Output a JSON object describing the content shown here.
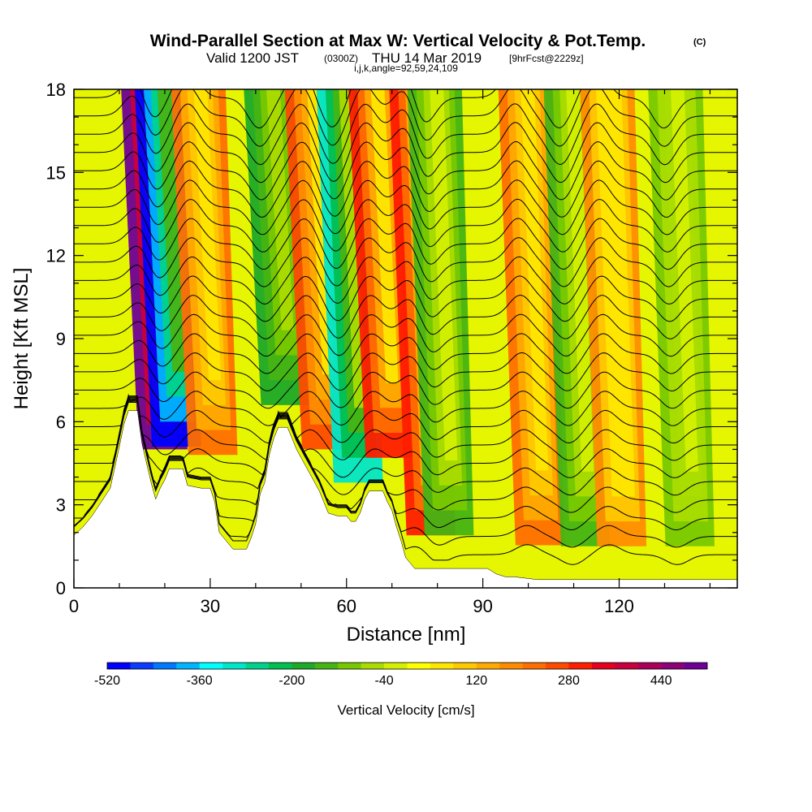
{
  "header": {
    "title": "Wind-Parallel Section at Max W: Vertical Velocity & Pot.Temp.",
    "copyright": "(C)",
    "subtitle_a": "Valid 1200 JST",
    "subtitle_b": "(0300Z)",
    "subtitle_c": "THU 14 Mar 2019",
    "subtitle_d": "[9hrFcst@2229z]",
    "meta": "i,j,k,angle=92,59,24,109"
  },
  "chart_data": {
    "type": "heatmap",
    "xlabel": "Distance [nm]",
    "ylabel": "Height [Kft MSL]",
    "xlim": [
      0,
      146
    ],
    "ylim": [
      0,
      18
    ],
    "x_ticks": [
      0,
      30,
      60,
      90,
      120
    ],
    "y_ticks": [
      0,
      3,
      6,
      9,
      12,
      15,
      18
    ],
    "grid": false,
    "colorbar": {
      "label": "Vertical Velocity [cm/s]",
      "range": [
        -520,
        520
      ],
      "step": 40,
      "tick_values": [
        -520,
        -360,
        -200,
        -40,
        120,
        280,
        440
      ],
      "colors": [
        "#0000ff",
        "#0a3cff",
        "#0078ff",
        "#00b4ff",
        "#00ffff",
        "#00e6c8",
        "#00d28c",
        "#00be50",
        "#1eaa28",
        "#46b414",
        "#78c800",
        "#aadc00",
        "#d2f000",
        "#ffff00",
        "#ffe600",
        "#ffc800",
        "#ffaa00",
        "#ff8c00",
        "#ff6e00",
        "#ff4b00",
        "#ff1e00",
        "#e6001e",
        "#c8003c",
        "#aa005a",
        "#8c0078",
        "#6e0096"
      ]
    },
    "terrain_kft": [
      [
        0,
        1.9
      ],
      [
        2,
        2.2
      ],
      [
        4,
        2.6
      ],
      [
        6,
        3.1
      ],
      [
        8,
        3.6
      ],
      [
        10,
        5.1
      ],
      [
        11,
        5.9
      ],
      [
        12,
        6.4
      ],
      [
        14,
        6.4
      ],
      [
        15,
        5.2
      ],
      [
        16,
        4.5
      ],
      [
        17,
        3.8
      ],
      [
        18,
        3.2
      ],
      [
        19,
        3.6
      ],
      [
        20,
        3.9
      ],
      [
        21,
        4.3
      ],
      [
        22,
        4.3
      ],
      [
        24,
        4.3
      ],
      [
        25,
        3.7
      ],
      [
        28,
        3.6
      ],
      [
        30,
        3.6
      ],
      [
        31,
        3.1
      ],
      [
        32,
        2.0
      ],
      [
        33,
        1.8
      ],
      [
        35,
        1.4
      ],
      [
        38,
        1.4
      ],
      [
        39,
        1.8
      ],
      [
        40,
        2.3
      ],
      [
        41,
        3.4
      ],
      [
        42,
        3.8
      ],
      [
        43,
        4.8
      ],
      [
        44,
        5.4
      ],
      [
        45,
        5.8
      ],
      [
        47,
        5.8
      ],
      [
        48,
        5.4
      ],
      [
        49,
        5.0
      ],
      [
        50,
        4.7
      ],
      [
        52,
        4.1
      ],
      [
        54,
        3.5
      ],
      [
        55,
        3.1
      ],
      [
        56,
        2.7
      ],
      [
        58,
        2.6
      ],
      [
        60,
        2.6
      ],
      [
        61,
        2.4
      ],
      [
        62,
        2.4
      ],
      [
        63,
        2.7
      ],
      [
        64,
        3.2
      ],
      [
        65,
        3.5
      ],
      [
        68,
        3.5
      ],
      [
        69,
        3.1
      ],
      [
        70,
        2.8
      ],
      [
        71,
        2.2
      ],
      [
        72,
        1.7
      ],
      [
        73,
        1.1
      ],
      [
        74,
        0.9
      ],
      [
        75,
        0.7
      ],
      [
        85,
        0.7
      ],
      [
        91,
        0.7
      ],
      [
        92,
        0.6
      ],
      [
        93,
        0.5
      ],
      [
        95,
        0.4
      ],
      [
        97,
        0.4
      ],
      [
        102,
        0.3
      ],
      [
        146,
        0.3
      ]
    ],
    "velocity_features": [
      {
        "x": 17,
        "sign": "updraft",
        "max_cm_s": 500
      },
      {
        "x": 20,
        "sign": "downdraft",
        "min_cm_s": -520
      },
      {
        "x": 28,
        "sign": "updraft",
        "max_cm_s": 200
      },
      {
        "x": 44,
        "sign": "downdraft",
        "min_cm_s": -200
      },
      {
        "x": 53,
        "sign": "updraft",
        "max_cm_s": 250
      },
      {
        "x": 60,
        "sign": "downdraft",
        "min_cm_s": -300
      },
      {
        "x": 67,
        "sign": "updraft",
        "max_cm_s": 280
      },
      {
        "x": 76,
        "sign": "updraft",
        "max_cm_s": 300
      },
      {
        "x": 80,
        "sign": "downdraft",
        "min_cm_s": -150
      },
      {
        "x": 100,
        "sign": "updraft",
        "max_cm_s": 200
      },
      {
        "x": 110,
        "sign": "downdraft",
        "min_cm_s": -150
      },
      {
        "x": 118,
        "sign": "updraft",
        "max_cm_s": 160
      },
      {
        "x": 133,
        "sign": "downdraft",
        "min_cm_s": -100
      }
    ]
  }
}
